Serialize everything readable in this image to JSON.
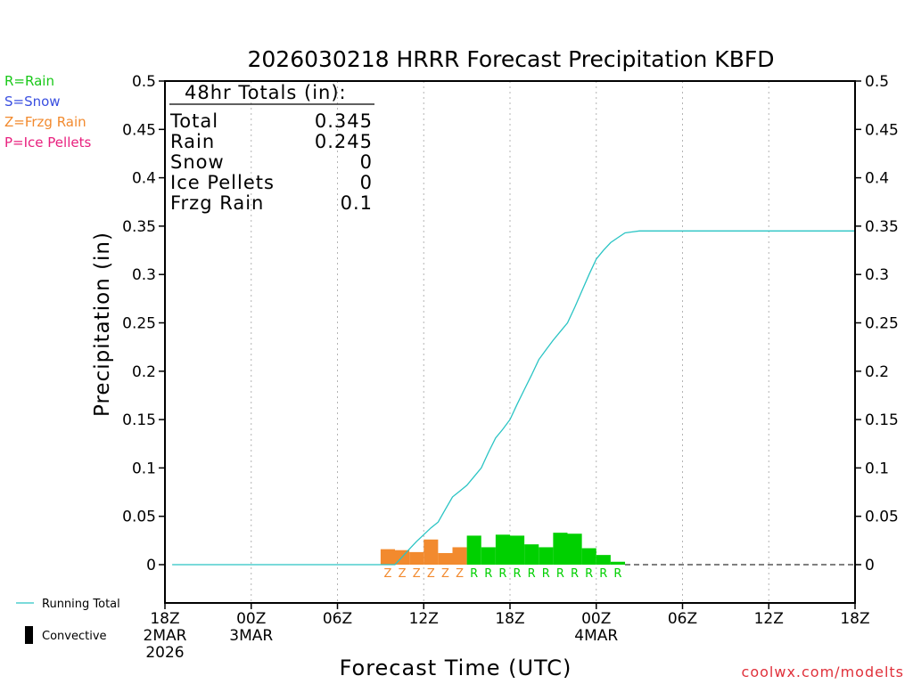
{
  "chart_data": {
    "type": "bar",
    "title": "2026030218 HRRR Forecast Precipitation KBFD",
    "xlabel": "Forecast Time (UTC)",
    "ylabel": "Precipitation (in)",
    "ylim": [
      0,
      0.5
    ],
    "y_ticks": [
      "0",
      "0.05",
      "0.1",
      "0.15",
      "0.2",
      "0.25",
      "0.3",
      "0.35",
      "0.4",
      "0.45",
      "0.5"
    ],
    "x_range_hours": [
      0,
      48
    ],
    "x_ticks": [
      {
        "hour": 0,
        "label": "18Z",
        "sub": "2MAR",
        "sub2": "2026"
      },
      {
        "hour": 6,
        "label": "00Z",
        "sub": "3MAR",
        "sub2": ""
      },
      {
        "hour": 12,
        "label": "06Z",
        "sub": "",
        "sub2": ""
      },
      {
        "hour": 18,
        "label": "12Z",
        "sub": "",
        "sub2": ""
      },
      {
        "hour": 24,
        "label": "18Z",
        "sub": "",
        "sub2": ""
      },
      {
        "hour": 30,
        "label": "00Z",
        "sub": "4MAR",
        "sub2": ""
      },
      {
        "hour": 36,
        "label": "06Z",
        "sub": "",
        "sub2": ""
      },
      {
        "hour": 42,
        "label": "12Z",
        "sub": "",
        "sub2": ""
      },
      {
        "hour": 48,
        "label": "18Z",
        "sub": "",
        "sub2": ""
      }
    ],
    "hourly_bars": [
      {
        "hour": 16,
        "value": 0.016,
        "type": "Z"
      },
      {
        "hour": 17,
        "value": 0.015,
        "type": "Z"
      },
      {
        "hour": 18,
        "value": 0.013,
        "type": "Z"
      },
      {
        "hour": 19,
        "value": 0.026,
        "type": "Z"
      },
      {
        "hour": 20,
        "value": 0.012,
        "type": "Z"
      },
      {
        "hour": 21,
        "value": 0.018,
        "type": "Z"
      },
      {
        "hour": 22,
        "value": 0.03,
        "type": "R"
      },
      {
        "hour": 23,
        "value": 0.018,
        "type": "R"
      },
      {
        "hour": 24,
        "value": 0.031,
        "type": "R"
      },
      {
        "hour": 25,
        "value": 0.03,
        "type": "R"
      },
      {
        "hour": 26,
        "value": 0.021,
        "type": "R"
      },
      {
        "hour": 27,
        "value": 0.018,
        "type": "R"
      },
      {
        "hour": 28,
        "value": 0.033,
        "type": "R"
      },
      {
        "hour": 29,
        "value": 0.032,
        "type": "R"
      },
      {
        "hour": 30,
        "value": 0.017,
        "type": "R"
      },
      {
        "hour": 31,
        "value": 0.01,
        "type": "R"
      },
      {
        "hour": 32,
        "value": 0.003,
        "type": "R"
      }
    ],
    "running_total": {
      "name": "Running Total",
      "x": [
        0.5,
        16.0,
        16.5,
        17.0,
        17.5,
        18.0,
        18.5,
        19.0,
        19.5,
        20.0,
        20.5,
        21.0,
        21.5,
        22.0,
        22.5,
        23.0,
        23.5,
        24.0,
        24.5,
        25.0,
        25.5,
        26.0,
        26.5,
        27.0,
        27.5,
        28.0,
        28.5,
        29.0,
        29.5,
        30.0,
        30.5,
        31.0,
        31.5,
        32.0,
        32.5,
        33.0,
        48.0
      ],
      "y": [
        0,
        0,
        0.008,
        0.016,
        0.024,
        0.031,
        0.038,
        0.044,
        0.057,
        0.07,
        0.076,
        0.082,
        0.091,
        0.1,
        0.116,
        0.131,
        0.14,
        0.15,
        0.166,
        0.181,
        0.196,
        0.212,
        0.222,
        0.232,
        0.241,
        0.25,
        0.266,
        0.283,
        0.3,
        0.316,
        0.325,
        0.333,
        0.338,
        0.343,
        0.344,
        0.345,
        0.345
      ]
    },
    "totals_box": {
      "heading": "48hr Totals (in):",
      "rows": [
        {
          "label": "Total",
          "value": "0.345"
        },
        {
          "label": "Rain",
          "value": "0.245"
        },
        {
          "label": "Snow",
          "value": "0"
        },
        {
          "label": "Ice Pellets",
          "value": "0"
        },
        {
          "label": "Frzg Rain",
          "value": "0.1"
        }
      ]
    },
    "legend": [
      {
        "text": "R=Rain",
        "color": "#19c819"
      },
      {
        "text": "S=Snow",
        "color": "#3a4fe0"
      },
      {
        "text": "Z=Frzg Rain",
        "color": "#f28a2e"
      },
      {
        "text": "P=Ice Pellets",
        "color": "#e8207e"
      }
    ],
    "footer_legend": {
      "running_total_label": "Running Total",
      "convective_label": "Convective"
    },
    "credit": "coolwx.com/modelts",
    "colors": {
      "rain": "#00d000",
      "frzg_rain": "#f28a2e",
      "running_total": "#2ac4c4",
      "grid": "#b4b4b4"
    }
  }
}
